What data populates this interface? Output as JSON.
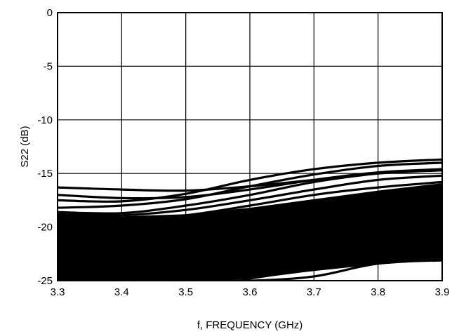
{
  "chart_data": {
    "type": "line",
    "title": "",
    "xlabel": "f, FREQUENCY (GHz)",
    "ylabel": "S22 (dB)",
    "xlim": [
      3.3,
      3.9
    ],
    "ylim": [
      -25,
      0
    ],
    "grid": true,
    "legend": "none",
    "x_ticks": [
      "3.3",
      "3.4",
      "3.5",
      "3.6",
      "3.7",
      "3.8",
      "3.9"
    ],
    "y_ticks": [
      "0",
      "-5",
      "-10",
      "-15",
      "-20",
      "-25"
    ],
    "x": [
      3.3,
      3.4,
      3.5,
      3.6,
      3.7,
      3.8,
      3.9
    ],
    "series": [
      {
        "values": [
          -16.3,
          -16.5,
          -16.6,
          -16.2,
          -15.6,
          -15.0,
          -14.7
        ]
      },
      {
        "values": [
          -17.0,
          -17.3,
          -17.2,
          -16.5,
          -15.6,
          -14.9,
          -14.6
        ]
      },
      {
        "values": [
          -17.5,
          -17.6,
          -16.9,
          -15.6,
          -14.6,
          -14.0,
          -13.7
        ]
      },
      {
        "values": [
          -18.2,
          -18.0,
          -17.4,
          -16.2,
          -15.1,
          -14.3,
          -14.0
        ]
      },
      {
        "values": [
          -18.6,
          -18.7,
          -18.0,
          -17.0,
          -15.8,
          -15.0,
          -14.6
        ]
      },
      {
        "values": [
          -18.8,
          -18.9,
          -18.4,
          -17.5,
          -16.5,
          -15.6,
          -15.2
        ]
      },
      {
        "values": [
          -19.2,
          -19.3,
          -18.9,
          -18.0,
          -17.0,
          -16.3,
          -15.8
        ]
      },
      {
        "values": [
          -20.0,
          -20.0,
          -19.6,
          -18.7,
          -17.8,
          -17.0,
          -16.5
        ]
      },
      {
        "values": [
          -20.6,
          -20.8,
          -20.4,
          -19.6,
          -18.7,
          -18.0,
          -17.4
        ]
      },
      {
        "values": [
          -21.3,
          -21.5,
          -21.1,
          -20.3,
          -19.5,
          -18.7,
          -18.2
        ]
      },
      {
        "values": [
          -22.0,
          -22.2,
          -21.9,
          -21.0,
          -20.2,
          -19.6,
          -19.0
        ]
      },
      {
        "values": [
          -22.6,
          -22.8,
          -22.6,
          -21.9,
          -21.0,
          -20.4,
          -19.9
        ]
      },
      {
        "values": [
          -23.2,
          -23.4,
          -23.3,
          -22.6,
          -21.9,
          -21.2,
          -20.8
        ]
      },
      {
        "values": [
          -23.8,
          -24.0,
          -24.0,
          -23.4,
          -22.7,
          -22.0,
          -21.6
        ]
      },
      {
        "values": [
          -24.3,
          -24.6,
          -24.6,
          -24.0,
          -23.4,
          -22.8,
          -22.3
        ]
      },
      {
        "values": [
          -24.8,
          -25.0,
          -25.0,
          -24.7,
          -24.0,
          -23.4,
          -23.0
        ]
      },
      {
        "values": [
          -25.0,
          -25.0,
          -25.0,
          -25.0,
          -24.6,
          -23.4,
          -23.1
        ]
      }
    ],
    "dense_band": {
      "upper": [
        -18.9,
        -19.0,
        -18.8,
        -18.2,
        -17.4,
        -16.6,
        -15.9
      ],
      "lower": [
        -25.0,
        -25.0,
        -25.0,
        -24.9,
        -24.0,
        -23.3,
        -22.9
      ]
    }
  }
}
